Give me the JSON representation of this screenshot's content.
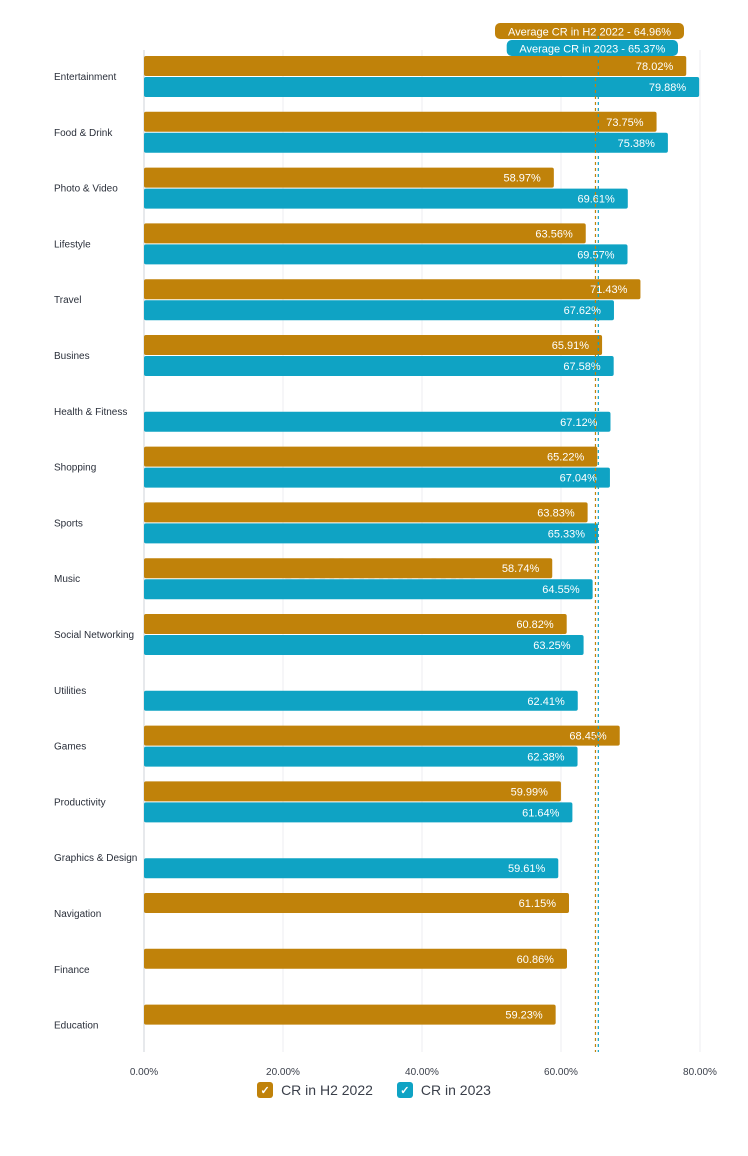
{
  "chart_data": {
    "type": "bar",
    "orientation": "horizontal",
    "categories": [
      "Entertainment",
      "Food & Drink",
      "Photo & Video",
      "Lifestyle",
      "Travel",
      "Busines",
      "Health & Fitness",
      "Shopping",
      "Sports",
      "Music",
      "Social Networking",
      "Utilities",
      "Games",
      "Productivity",
      "Graphics & Design",
      "Navigation",
      "Finance",
      "Education"
    ],
    "series": [
      {
        "name": "CR in H2 2022",
        "color": "#c0820a",
        "values": [
          78.02,
          73.75,
          58.97,
          63.56,
          71.43,
          65.91,
          null,
          65.22,
          63.83,
          58.74,
          60.82,
          null,
          68.45,
          59.99,
          null,
          61.15,
          60.86,
          59.23
        ],
        "labels": [
          "78.02%",
          "73.75%",
          "58.97%",
          "63.56%",
          "71.43%",
          "65.91%",
          null,
          "65.22%",
          "63.83%",
          "58.74%",
          "60.82%",
          null,
          "68.45%",
          "59.99%",
          null,
          "61.15%",
          "60.86%",
          "59.23%"
        ]
      },
      {
        "name": "CR in 2023",
        "color": "#0fa3c4",
        "values": [
          79.88,
          75.38,
          69.61,
          69.57,
          67.62,
          67.58,
          67.12,
          67.04,
          65.33,
          64.55,
          63.25,
          62.41,
          62.38,
          61.64,
          59.61,
          null,
          null,
          null
        ],
        "labels": [
          "79.88%",
          "75.38%",
          "69.61%",
          "69.57%",
          "67.62%",
          "67.58%",
          "67.12%",
          "67.04%",
          "65.33%",
          "64.55%",
          "63.25%",
          "62.41%",
          "62.38%",
          "61.64%",
          "59.61%",
          null,
          null,
          null
        ]
      }
    ],
    "xlim": [
      0,
      80
    ],
    "xticks": [
      "0.00%",
      "20.00%",
      "40.00%",
      "60.00%",
      "80.00%"
    ],
    "xtick_values": [
      0,
      20,
      40,
      60,
      80
    ],
    "grid": true,
    "legend_position": "bottom-center",
    "reference_lines": [
      {
        "label": "Average CR in H2 2022 - 64.96%",
        "value": 64.96,
        "color": "#c0820a"
      },
      {
        "label": "Average CR in 2023 - 65.37%",
        "value": 65.37,
        "color": "#0fa3c4"
      }
    ],
    "watermark": "SplitMetrics"
  }
}
